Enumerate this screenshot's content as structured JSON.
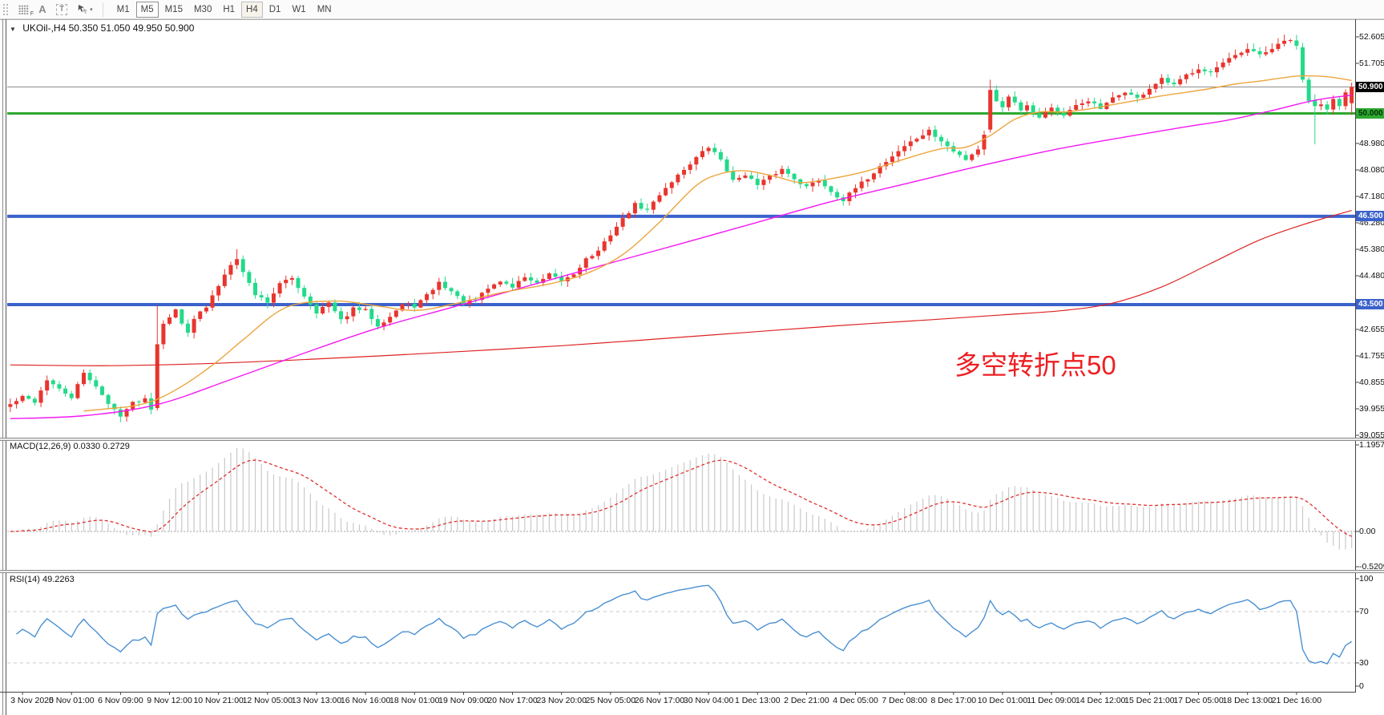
{
  "toolbar": {
    "icons": [
      {
        "name": "dotted-grid-f-icon",
        "glyph": "F"
      },
      {
        "name": "text-a-icon",
        "glyph": "A"
      },
      {
        "name": "text-label-icon",
        "glyph": "T"
      },
      {
        "name": "cursor-mode-icon",
        "glyph": "cursor-arrows"
      },
      {
        "name": "dropdown-caret-icon",
        "glyph": "▾"
      }
    ],
    "timeframes": [
      {
        "label": "M1",
        "state": "normal"
      },
      {
        "label": "M5",
        "state": "pressed"
      },
      {
        "label": "M15",
        "state": "normal"
      },
      {
        "label": "M30",
        "state": "normal"
      },
      {
        "label": "H1",
        "state": "normal"
      },
      {
        "label": "H4",
        "state": "hot"
      },
      {
        "label": "D1",
        "state": "normal"
      },
      {
        "label": "W1",
        "state": "normal"
      },
      {
        "label": "MN",
        "state": "normal"
      }
    ]
  },
  "chart": {
    "symbol_period": "UKOil-,H4",
    "ohlc": "50.350 51.050 49.950 50.900",
    "dropdown_glyph": "▼",
    "annotation": {
      "text": "多空转折点50",
      "color": "#ed2024"
    },
    "price_ticks": [
      {
        "t": "52.605",
        "v": 52.605
      },
      {
        "t": "51.705",
        "v": 51.705
      },
      {
        "t": "48.980",
        "v": 48.98
      },
      {
        "t": "48.080",
        "v": 48.08
      },
      {
        "t": "47.180",
        "v": 47.18
      },
      {
        "t": "46.280",
        "v": 46.28
      },
      {
        "t": "45.380",
        "v": 45.38
      },
      {
        "t": "44.480",
        "v": 44.48
      },
      {
        "t": "42.655",
        "v": 42.655
      },
      {
        "t": "41.755",
        "v": 41.755
      },
      {
        "t": "40.855",
        "v": 40.855
      },
      {
        "t": "39.955",
        "v": 39.955
      },
      {
        "t": "39.055",
        "v": 39.055
      }
    ],
    "hlines": [
      {
        "value": 50.9,
        "color": "#8c8c8c",
        "width": 1,
        "badge_bg": "#000000",
        "badge_fg": "#ffffff",
        "label": "50.900"
      },
      {
        "value": 50.0,
        "color": "#2fa832",
        "width": 3,
        "badge_bg": "#2fa832",
        "badge_fg": "#003300",
        "label": "50.000"
      },
      {
        "value": 46.5,
        "color": "#3b62cb",
        "width": 4,
        "badge_bg": "#3b62cb",
        "badge_fg": "#ffffff",
        "label": "46.500"
      },
      {
        "value": 43.5,
        "color": "#3b62cb",
        "width": 4,
        "badge_bg": "#3b62cb",
        "badge_fg": "#ffffff",
        "label": "43.500"
      }
    ]
  },
  "chart_data": {
    "type": "candlestick",
    "symbol": "UKOil-",
    "timeframe": "H4",
    "bars": 220,
    "price_axis_range": [
      38.95,
      53.18
    ],
    "last_bar": {
      "open": 50.35,
      "high": 51.05,
      "low": 49.95,
      "close": 50.9
    },
    "colors": {
      "bull": "#e8352e",
      "bear": "#23da8a",
      "ma_fast": "#eda53d",
      "ma_mid": "#f318f3",
      "ma_slow": "#dd2222",
      "macd_hist": "#c9c9c9",
      "macd_signal": "#e03030",
      "rsi_line": "#4a90d2"
    },
    "close_path": [
      [
        0,
        40.1
      ],
      [
        2,
        40.35
      ],
      [
        4,
        40.2
      ],
      [
        6,
        40.95
      ],
      [
        8,
        40.6
      ],
      [
        10,
        40.35
      ],
      [
        12,
        41.15
      ],
      [
        14,
        40.75
      ],
      [
        16,
        40.1
      ],
      [
        18,
        39.75
      ],
      [
        20,
        40.15
      ],
      [
        22,
        40.3
      ],
      [
        23,
        39.98
      ],
      [
        24,
        42.15
      ],
      [
        25,
        42.9
      ],
      [
        26,
        43.1
      ],
      [
        27,
        43.3
      ],
      [
        28,
        42.85
      ],
      [
        29,
        42.6
      ],
      [
        30,
        43.05
      ],
      [
        32,
        43.4
      ],
      [
        34,
        44.15
      ],
      [
        36,
        44.9
      ],
      [
        37,
        45.1
      ],
      [
        38,
        44.6
      ],
      [
        40,
        43.85
      ],
      [
        42,
        43.6
      ],
      [
        44,
        44.2
      ],
      [
        46,
        44.4
      ],
      [
        48,
        43.8
      ],
      [
        50,
        43.25
      ],
      [
        52,
        43.55
      ],
      [
        54,
        42.95
      ],
      [
        56,
        43.35
      ],
      [
        58,
        43.3
      ],
      [
        60,
        42.8
      ],
      [
        62,
        43.1
      ],
      [
        64,
        43.5
      ],
      [
        66,
        43.45
      ],
      [
        68,
        43.8
      ],
      [
        70,
        44.25
      ],
      [
        72,
        43.95
      ],
      [
        74,
        43.55
      ],
      [
        76,
        43.65
      ],
      [
        78,
        44.05
      ],
      [
        80,
        44.3
      ],
      [
        82,
        44.1
      ],
      [
        84,
        44.45
      ],
      [
        86,
        44.2
      ],
      [
        88,
        44.5
      ],
      [
        90,
        44.3
      ],
      [
        92,
        44.55
      ],
      [
        94,
        45.05
      ],
      [
        96,
        45.3
      ],
      [
        98,
        45.9
      ],
      [
        100,
        46.4
      ],
      [
        102,
        46.9
      ],
      [
        104,
        46.7
      ],
      [
        106,
        47.25
      ],
      [
        108,
        47.7
      ],
      [
        110,
        48.1
      ],
      [
        112,
        48.5
      ],
      [
        114,
        48.85
      ],
      [
        116,
        48.45
      ],
      [
        118,
        47.7
      ],
      [
        120,
        47.95
      ],
      [
        122,
        47.55
      ],
      [
        124,
        47.85
      ],
      [
        126,
        48.1
      ],
      [
        128,
        47.8
      ],
      [
        130,
        47.5
      ],
      [
        132,
        47.75
      ],
      [
        134,
        47.35
      ],
      [
        136,
        47.05
      ],
      [
        138,
        47.45
      ],
      [
        140,
        47.8
      ],
      [
        142,
        48.2
      ],
      [
        144,
        48.55
      ],
      [
        146,
        48.9
      ],
      [
        148,
        49.15
      ],
      [
        150,
        49.4
      ],
      [
        152,
        49.05
      ],
      [
        154,
        48.7
      ],
      [
        156,
        48.45
      ],
      [
        158,
        48.8
      ],
      [
        159,
        49.3
      ],
      [
        160,
        50.8
      ],
      [
        161,
        50.45
      ],
      [
        162,
        50.25
      ],
      [
        163,
        50.55
      ],
      [
        164,
        50.4
      ],
      [
        165,
        50.15
      ],
      [
        166,
        50.3
      ],
      [
        167,
        50.05
      ],
      [
        168,
        49.85
      ],
      [
        169,
        50.1
      ],
      [
        170,
        50.2
      ],
      [
        172,
        49.9
      ],
      [
        174,
        50.25
      ],
      [
        176,
        50.45
      ],
      [
        178,
        50.15
      ],
      [
        180,
        50.5
      ],
      [
        182,
        50.75
      ],
      [
        184,
        50.5
      ],
      [
        186,
        50.85
      ],
      [
        188,
        51.15
      ],
      [
        190,
        50.95
      ],
      [
        192,
        51.3
      ],
      [
        194,
        51.55
      ],
      [
        196,
        51.4
      ],
      [
        198,
        51.7
      ],
      [
        200,
        51.95
      ],
      [
        202,
        52.15
      ],
      [
        204,
        52.0
      ],
      [
        206,
        52.2
      ],
      [
        208,
        52.45
      ],
      [
        209,
        52.5
      ],
      [
        210,
        52.25
      ],
      [
        211,
        51.15
      ],
      [
        212,
        50.45
      ],
      [
        213,
        50.25
      ],
      [
        214,
        50.35
      ],
      [
        215,
        50.15
      ],
      [
        216,
        50.55
      ],
      [
        217,
        50.3
      ],
      [
        218,
        50.7
      ],
      [
        219,
        50.9
      ]
    ],
    "special_bars": [
      {
        "i": 18,
        "l": 39.5
      },
      {
        "i": 24,
        "o": 39.98,
        "h": 43.45,
        "l": 39.9,
        "c": 42.15
      },
      {
        "i": 37,
        "h": 45.38
      },
      {
        "i": 160,
        "o": 49.45,
        "h": 51.15,
        "l": 49.35,
        "c": 50.8
      },
      {
        "i": 208,
        "h": 52.68
      },
      {
        "i": 211,
        "o": 52.25,
        "h": 52.4,
        "l": 51.05,
        "c": 51.15
      },
      {
        "i": 213,
        "o": 50.45,
        "h": 50.65,
        "l": 48.95,
        "c": 50.25
      },
      {
        "i": 219,
        "o": 50.35,
        "h": 51.05,
        "l": 49.95,
        "c": 50.9
      }
    ],
    "ma_fast_path": [
      [
        12,
        39.88
      ],
      [
        16,
        39.96
      ],
      [
        20,
        40.05
      ],
      [
        24,
        40.28
      ],
      [
        29,
        40.85
      ],
      [
        34,
        41.6
      ],
      [
        38,
        42.3
      ],
      [
        45,
        43.4
      ],
      [
        53,
        43.62
      ],
      [
        60,
        43.45
      ],
      [
        66,
        43.3
      ],
      [
        72,
        43.5
      ],
      [
        80,
        43.9
      ],
      [
        88,
        44.2
      ],
      [
        94,
        44.55
      ],
      [
        100,
        45.2
      ],
      [
        106,
        46.3
      ],
      [
        112,
        47.55
      ],
      [
        116,
        47.95
      ],
      [
        120,
        48.05
      ],
      [
        125,
        47.85
      ],
      [
        129,
        47.65
      ],
      [
        134,
        47.78
      ],
      [
        140,
        48.05
      ],
      [
        146,
        48.45
      ],
      [
        152,
        48.8
      ],
      [
        156,
        48.85
      ],
      [
        160,
        49.25
      ],
      [
        164,
        49.8
      ],
      [
        168,
        50.05
      ],
      [
        172,
        50.05
      ],
      [
        176,
        50.15
      ],
      [
        180,
        50.3
      ],
      [
        184,
        50.45
      ],
      [
        188,
        50.6
      ],
      [
        192,
        50.72
      ],
      [
        196,
        50.85
      ],
      [
        200,
        51.0
      ],
      [
        204,
        51.1
      ],
      [
        208,
        51.22
      ],
      [
        211,
        51.28
      ],
      [
        215,
        51.25
      ],
      [
        219,
        51.12
      ]
    ],
    "ma_mid_path": [
      [
        0,
        39.62
      ],
      [
        12,
        39.72
      ],
      [
        24,
        40.1
      ],
      [
        36,
        40.95
      ],
      [
        48,
        41.85
      ],
      [
        60,
        42.7
      ],
      [
        72,
        43.4
      ],
      [
        84,
        44.1
      ],
      [
        96,
        44.8
      ],
      [
        110,
        45.6
      ],
      [
        122,
        46.3
      ],
      [
        134,
        47.0
      ],
      [
        146,
        47.6
      ],
      [
        158,
        48.2
      ],
      [
        170,
        48.75
      ],
      [
        182,
        49.2
      ],
      [
        192,
        49.55
      ],
      [
        199,
        49.78
      ],
      [
        206,
        50.1
      ],
      [
        213,
        50.45
      ],
      [
        219,
        50.62
      ]
    ],
    "ma_slow_path": [
      [
        0,
        41.45
      ],
      [
        15,
        41.42
      ],
      [
        30,
        41.48
      ],
      [
        45,
        41.6
      ],
      [
        60,
        41.75
      ],
      [
        75,
        41.92
      ],
      [
        90,
        42.1
      ],
      [
        105,
        42.32
      ],
      [
        120,
        42.55
      ],
      [
        135,
        42.78
      ],
      [
        150,
        42.98
      ],
      [
        162,
        43.15
      ],
      [
        172,
        43.3
      ],
      [
        180,
        43.55
      ],
      [
        188,
        44.1
      ],
      [
        196,
        44.9
      ],
      [
        204,
        45.7
      ],
      [
        212,
        46.28
      ],
      [
        219,
        46.7
      ]
    ]
  },
  "macd_panel": {
    "label": "MACD(12,26,9) 0.0330 0.2729",
    "params": "12,26,9",
    "value_main": "0.0330",
    "value_signal": "0.2729",
    "axis": [
      {
        "t": "1.1957",
        "v": 1.1957
      },
      {
        "t": "0.00",
        "v": 0
      },
      {
        "t": "-0.5209",
        "v": -0.5209
      }
    ]
  },
  "rsi_panel": {
    "label": "RSI(14) 49.2263",
    "period": "14",
    "value": "49.2263",
    "axis": [
      {
        "t": "100",
        "v": 100
      },
      {
        "t": "70",
        "v": 70
      },
      {
        "t": "30",
        "v": 30
      },
      {
        "t": "0",
        "v": 0
      }
    ],
    "levels": [
      70,
      30
    ]
  },
  "time_axis": {
    "labels": [
      "3 Nov 2020",
      "5 Nov 01:00",
      "6 Nov 09:00",
      "9 Nov 12:00",
      "10 Nov 21:00",
      "12 Nov 05:00",
      "13 Nov 13:00",
      "16 Nov 16:00",
      "18 Nov 01:00",
      "19 Nov 09:00",
      "20 Nov 17:00",
      "23 Nov 20:00",
      "25 Nov 05:00",
      "26 Nov 17:00",
      "30 Nov 04:00",
      "1 Dec 13:00",
      "2 Dec 21:00",
      "4 Dec 05:00",
      "7 Dec 08:00",
      "8 Dec 17:00",
      "10 Dec 01:00",
      "11 Dec 09:00",
      "14 Dec 12:00",
      "15 Dec 21:00",
      "17 Dec 05:00",
      "18 Dec 13:00",
      "21 Dec 16:00"
    ]
  }
}
